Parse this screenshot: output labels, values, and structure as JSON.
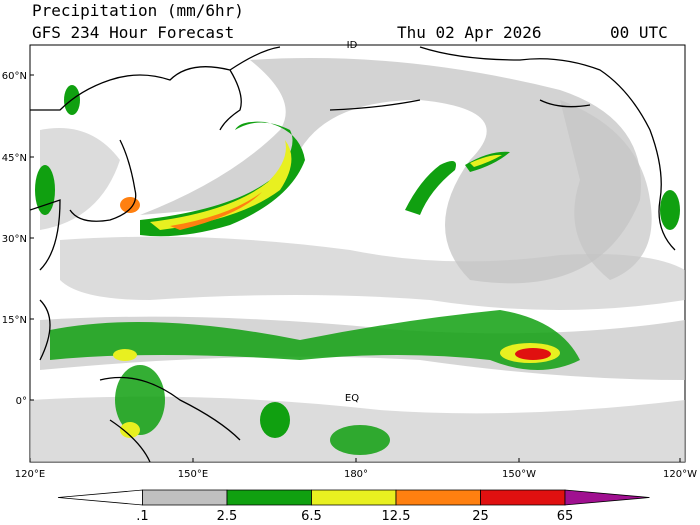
{
  "header": {
    "title": "Precipitation (mm/6hr)",
    "subtitle": "GFS 234 Hour Forecast",
    "date": "Thu 02 Apr 2026",
    "time": "00 UTC"
  },
  "map": {
    "lat_labels": [
      "60°N",
      "45°N",
      "30°N",
      "15°N",
      "0°"
    ],
    "lon_labels": [
      "120°E",
      "150°E",
      "180°",
      "150°W",
      "120°W"
    ],
    "markers": [
      "ID",
      "EQ"
    ]
  },
  "colorbar": {
    "labels": [
      ".1",
      "2.5",
      "6.5",
      "12.5",
      "25",
      "65"
    ],
    "colors": [
      "#ffffff",
      "#c0c0c0",
      "#10a010",
      "#e8f020",
      "#ff8010",
      "#e01010",
      "#a01090"
    ]
  }
}
